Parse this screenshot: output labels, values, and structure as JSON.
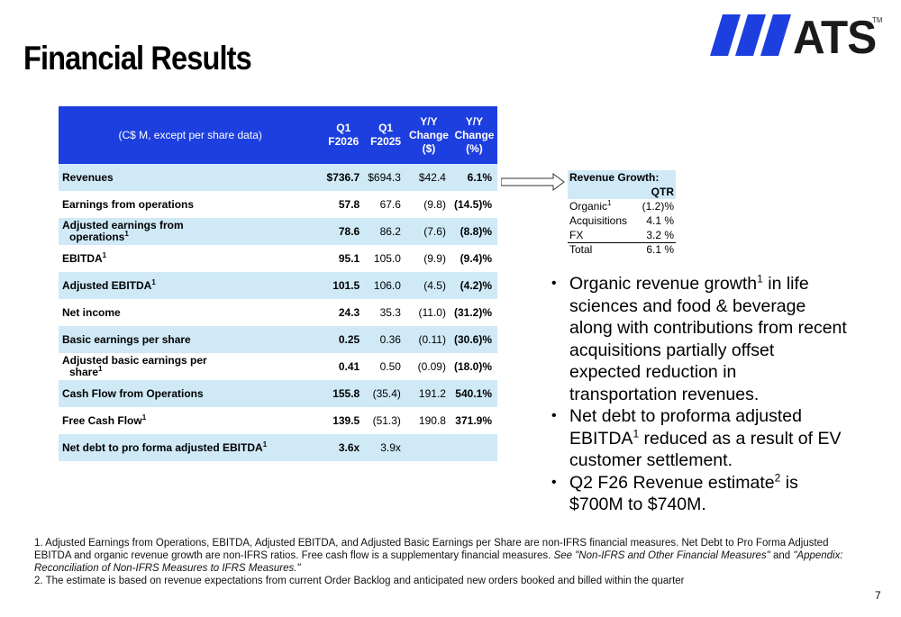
{
  "title": "Financial Results",
  "logo": {
    "text": "ATS",
    "tm": "TM",
    "bar_color": "#1d3fe0"
  },
  "table": {
    "header": {
      "label": "(C$ M, except per share data)",
      "col1": [
        "Q1",
        "F2026"
      ],
      "col2": [
        "Q1",
        "F2025"
      ],
      "col3": [
        "Y/Y",
        "Change",
        "($)"
      ],
      "col4": [
        "Y/Y",
        "Change",
        "(%)"
      ]
    },
    "rows": [
      {
        "label": "Revenues",
        "sup": "",
        "q1_2026": "$736.7",
        "q1_2025": "$694.3",
        "chg": "$42.4",
        "pct": "6.1%"
      },
      {
        "label": "Earnings from operations",
        "sup": "",
        "q1_2026": "57.8",
        "q1_2025": "67.6",
        "chg": "(9.8)",
        "pct": "(14.5)%"
      },
      {
        "label": "Adjusted earnings from",
        "label2": "operations",
        "sup": "1",
        "q1_2026": "78.6",
        "q1_2025": "86.2",
        "chg": "(7.6)",
        "pct": "(8.8)%"
      },
      {
        "label": "EBITDA",
        "sup": "1",
        "q1_2026": "95.1",
        "q1_2025": "105.0",
        "chg": "(9.9)",
        "pct": "(9.4)%"
      },
      {
        "label": "Adjusted EBITDA",
        "sup": "1",
        "q1_2026": "101.5",
        "q1_2025": "106.0",
        "chg": "(4.5)",
        "pct": "(4.2)%"
      },
      {
        "label": "Net income",
        "sup": "",
        "q1_2026": "24.3",
        "q1_2025": "35.3",
        "chg": "(11.0)",
        "pct": "(31.2)%"
      },
      {
        "label": "Basic earnings per share",
        "sup": "",
        "q1_2026": "0.25",
        "q1_2025": "0.36",
        "chg": "(0.11)",
        "pct": "(30.6)%"
      },
      {
        "label": "Adjusted basic earnings per",
        "label2": "share",
        "sup": "1",
        "q1_2026": "0.41",
        "q1_2025": "0.50",
        "chg": "(0.09)",
        "pct": "(18.0)%"
      },
      {
        "label": "Cash Flow from Operations",
        "sup": "",
        "q1_2026": "155.8",
        "q1_2025": "(35.4)",
        "chg": "191.2",
        "pct": "540.1%"
      },
      {
        "label": "Free Cash Flow",
        "sup": "1",
        "q1_2026": "139.5",
        "q1_2025": "(51.3)",
        "chg": "190.8",
        "pct": "371.9%"
      },
      {
        "label": "Net debt to pro forma adjusted EBITDA",
        "sup": "1",
        "q1_2026": "3.6x",
        "q1_2025": "3.9x",
        "chg": "",
        "pct": ""
      }
    ]
  },
  "growth": {
    "title": "Revenue Growth:",
    "col": "QTR",
    "rows": [
      {
        "label": "Organic",
        "sup": "1",
        "value": "(1.2)%"
      },
      {
        "label": "Acquisitions",
        "sup": "",
        "value": "4.1 %"
      },
      {
        "label": "FX",
        "sup": "",
        "value": "3.2 %"
      },
      {
        "label": "Total",
        "sup": "",
        "value": "6.1 %"
      }
    ]
  },
  "bullets": {
    "b1a": "Organic revenue growth",
    "b1sup": "1",
    "b1b": " in life sciences and food & beverage along with contributions from recent acquisitions partially offset expected reduction in transportation revenues.",
    "b2a": "Net debt to proforma adjusted EBITDA",
    "b2sup": "1",
    "b2b": " reduced as a result of EV customer settlement.",
    "b3a": "Q2 F26 Revenue estimate",
    "b3sup": "2",
    "b3b": " is $700M to $740M."
  },
  "footnotes": {
    "f1a": "1. Adjusted Earnings from Operations, EBITDA, Adjusted EBITDA, and Adjusted Basic Earnings per Share are non-IFRS financial measures. Net Debt to Pro Forma Adjusted EBITDA and organic revenue growth are non-IFRS ratios. Free cash flow is a supplementary financial measures. ",
    "f1b": "See \"Non-IFRS and Other Financial Measures\"",
    "f1c": " and ",
    "f1d": "\"Appendix: Reconciliation of Non-IFRS Measures to IFRS Measures.\"",
    "f2": "2. The estimate is based on revenue expectations from current Order Backlog and anticipated new orders booked and billed within the quarter"
  },
  "page_number": "7"
}
